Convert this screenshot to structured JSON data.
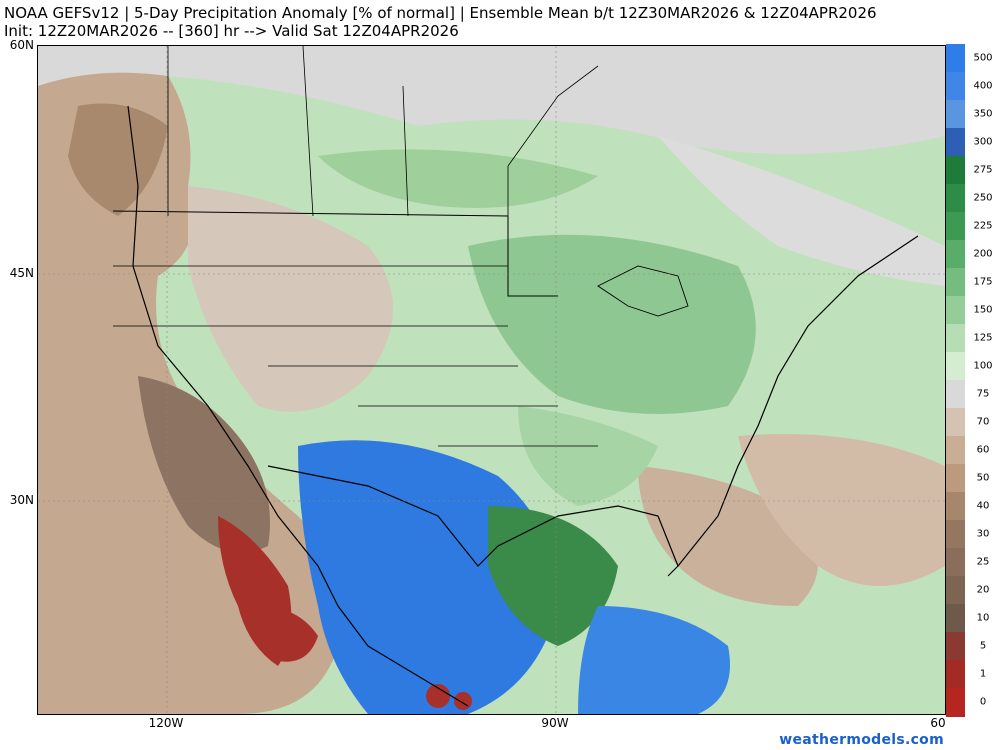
{
  "header": {
    "title_line1": "NOAA GEFSv12 | 5-Day Precipitation Anomaly [% of normal] | Ensemble Mean b/t 12Z30MAR2026 & 12Z04APR2026",
    "title_line2": "Init: 12Z20MAR2026 -- [360] hr --> Valid Sat 12Z04APR2026"
  },
  "axes": {
    "lat_labels": [
      "60N",
      "45N",
      "30N"
    ],
    "lon_labels": [
      "120W",
      "90W",
      "60"
    ]
  },
  "colorbar": {
    "levels": [
      {
        "label": "500",
        "color": "#2e7de8"
      },
      {
        "label": "400",
        "color": "#3f86e6"
      },
      {
        "label": "350",
        "color": "#5a95e0"
      },
      {
        "label": "300",
        "color": "#2d5fb5"
      },
      {
        "label": "275",
        "color": "#1f7b3a"
      },
      {
        "label": "250",
        "color": "#2d8c45"
      },
      {
        "label": "225",
        "color": "#3d9a52"
      },
      {
        "label": "200",
        "color": "#5aad69"
      },
      {
        "label": "175",
        "color": "#75bd7f"
      },
      {
        "label": "150",
        "color": "#95cd98"
      },
      {
        "label": "125",
        "color": "#b6ddb4"
      },
      {
        "label": "100",
        "color": "#d6ecd2"
      },
      {
        "label": "75",
        "color": "#d9d9d9"
      },
      {
        "label": "70",
        "color": "#d4c3b2"
      },
      {
        "label": "60",
        "color": "#c9ad94"
      },
      {
        "label": "50",
        "color": "#bb9a7e"
      },
      {
        "label": "40",
        "color": "#a7876c"
      },
      {
        "label": "30",
        "color": "#957661"
      },
      {
        "label": "25",
        "color": "#8a6e5b"
      },
      {
        "label": "20",
        "color": "#7e6553"
      },
      {
        "label": "10",
        "color": "#6e5a4b"
      },
      {
        "label": "5",
        "color": "#8a3a30"
      },
      {
        "label": "1",
        "color": "#a42a24"
      },
      {
        "label": "0",
        "color": "#b52620"
      }
    ]
  },
  "credit": "weathermodels.com"
}
